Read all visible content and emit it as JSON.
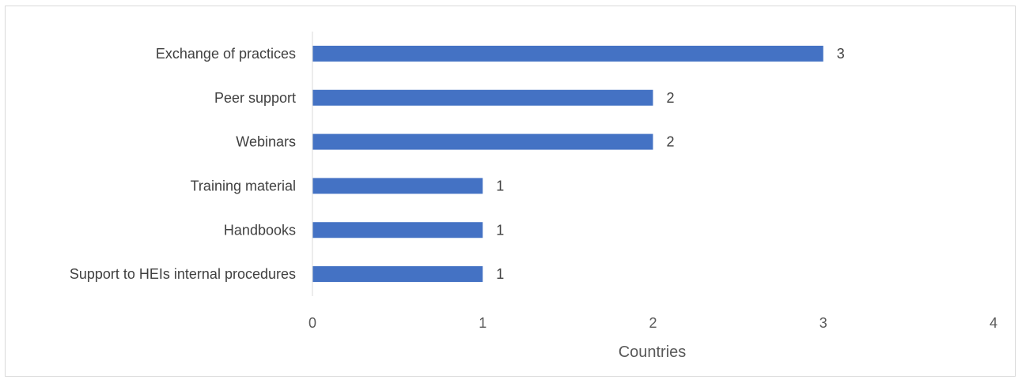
{
  "chart_data": {
    "type": "bar",
    "orientation": "horizontal",
    "categories": [
      "Exchange of practices",
      "Peer support",
      "Webinars",
      "Training material",
      "Handbooks",
      "Support to HEIs internal procedures"
    ],
    "values": [
      3,
      2,
      2,
      1,
      1,
      1
    ],
    "xlabel": "Countries",
    "ylabel": "",
    "xlim": [
      0,
      4
    ],
    "xticks": [
      0,
      1,
      2,
      3,
      4
    ],
    "grid": false,
    "data_labels": true,
    "bar_color": "#4472c4"
  }
}
